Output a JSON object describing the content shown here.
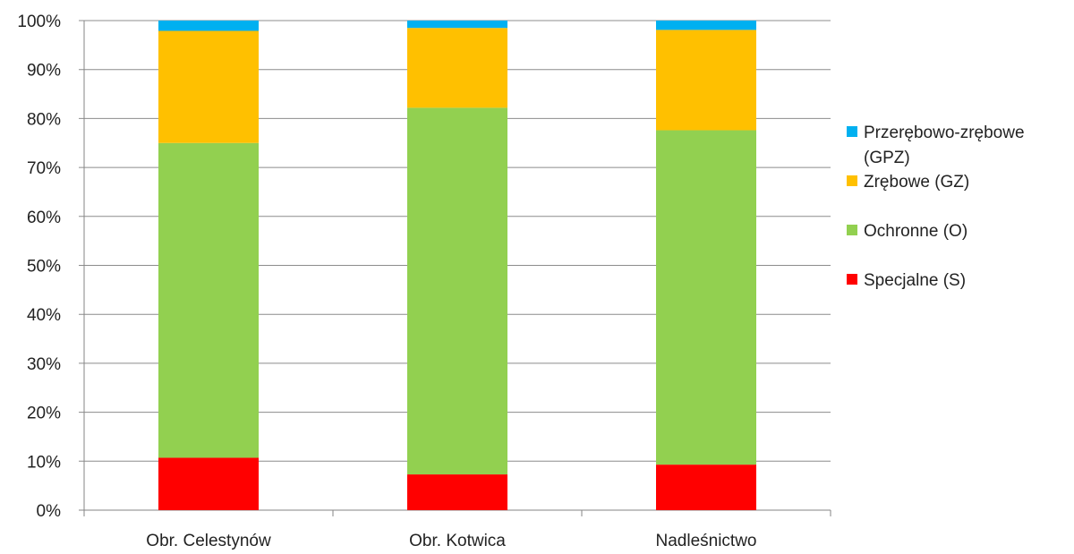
{
  "chart_data": {
    "type": "bar",
    "stacked": true,
    "percent": true,
    "categories": [
      "Obr. Celestynów",
      "Obr. Kotwica",
      "Nadleśnictwo"
    ],
    "series": [
      {
        "name": "Specjalne (S)",
        "color": "#ff0000",
        "values": [
          10.7,
          7.3,
          9.3
        ]
      },
      {
        "name": "Ochronne (O)",
        "color": "#92d050",
        "values": [
          64.3,
          74.9,
          68.3
        ]
      },
      {
        "name": "Zrębowe (GZ)",
        "color": "#ffc000",
        "values": [
          22.9,
          16.3,
          20.5
        ]
      },
      {
        "name": "Przerębowo-zrębowe (GPZ)",
        "color": "#00b0f0",
        "values": [
          2.1,
          1.5,
          1.9
        ]
      }
    ],
    "legend_lines": [
      [
        "Przerębowo-zrębowe",
        "(GPZ)"
      ],
      [
        "Zrębowe (GZ)"
      ],
      [
        "Ochronne (O)"
      ],
      [
        "Specjalne (S)"
      ]
    ],
    "y_ticks": [
      "0%",
      "10%",
      "20%",
      "30%",
      "40%",
      "50%",
      "60%",
      "70%",
      "80%",
      "90%",
      "100%"
    ],
    "ylim": [
      0,
      100
    ],
    "grid": true,
    "legend_position": "right"
  }
}
